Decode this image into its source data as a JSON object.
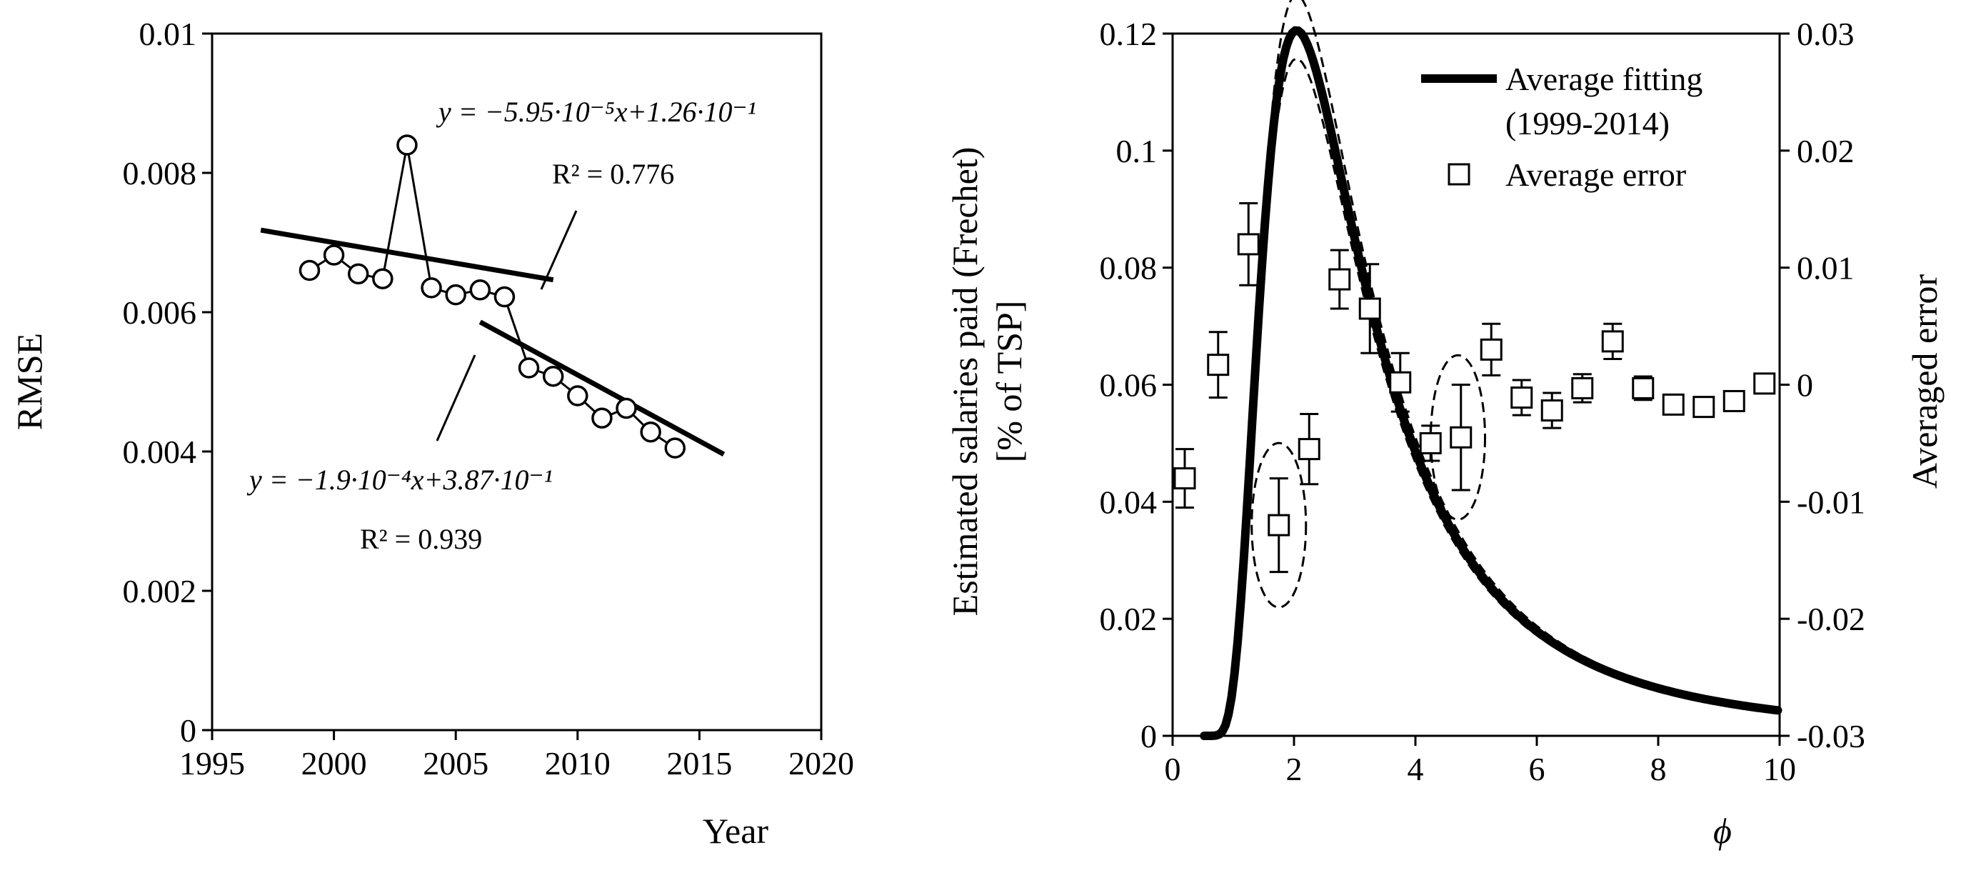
{
  "chart_data": [
    {
      "id": "left",
      "type": "scatter",
      "xlabel": "Year",
      "ylabel": "RMSE",
      "xlim": [
        1995,
        2020
      ],
      "ylim": [
        0,
        0.01
      ],
      "xticks": [
        1995,
        2000,
        2005,
        2010,
        2015,
        2020
      ],
      "yticks": [
        0,
        0.002,
        0.004,
        0.006,
        0.008,
        0.01
      ],
      "ytick_labels": [
        "0",
        "0.002",
        "0.004",
        "0.006",
        "0.008",
        "0.01"
      ],
      "series": [
        {
          "name": "RMSE",
          "x": [
            1999,
            2000,
            2001,
            2002,
            2003,
            2004,
            2005,
            2006,
            2007,
            2008,
            2009,
            2010,
            2011,
            2012,
            2013,
            2014
          ],
          "y": [
            0.0066,
            0.00682,
            0.00655,
            0.00648,
            0.0084,
            0.00635,
            0.00625,
            0.00632,
            0.00622,
            0.0052,
            0.00508,
            0.0048,
            0.00448,
            0.00462,
            0.00428,
            0.00405
          ]
        }
      ],
      "fits": [
        {
          "name": "fit-1999-2007",
          "x": [
            1997,
            2009
          ],
          "slope": -5.95e-05,
          "intercept": 0.126
        },
        {
          "name": "fit-2008-2014",
          "x": [
            2006,
            2016
          ],
          "slope": -0.00019,
          "intercept": 0.387
        }
      ],
      "annotations": [
        {
          "equation": "y = −5.95·10⁻⁵x+1.26·10⁻¹",
          "r2_label": "R² = 0.776"
        },
        {
          "equation": "y = −1.9·10⁻⁴x+3.87·10⁻¹",
          "r2_label": "R² = 0.939"
        }
      ]
    },
    {
      "id": "right",
      "type": "line",
      "xlabel": "ϕ",
      "ylabel_lines": [
        "Estimated salaries paid (Frechet)",
        "[% of TSP]"
      ],
      "y2label": "Averaged error",
      "xlim": [
        0,
        10
      ],
      "ylim": [
        0,
        0.12
      ],
      "y2lim": [
        -0.03,
        0.03
      ],
      "xticks": [
        0,
        2,
        4,
        6,
        8,
        10
      ],
      "yticks": [
        0,
        0.02,
        0.04,
        0.06,
        0.08,
        0.1,
        0.12
      ],
      "ytick_labels": [
        "0",
        "0.02",
        "0.04",
        "0.06",
        "0.08",
        "0.1",
        "0.12"
      ],
      "y2ticks": [
        -0.03,
        -0.02,
        -0.01,
        0,
        0.01,
        0.02,
        0.03
      ],
      "y2tick_labels": [
        "-0.03",
        "-0.02",
        "-0.01",
        "0",
        "0.01",
        "0.02",
        "0.03"
      ],
      "legend": {
        "placement": "top-right",
        "fit_label_lines": [
          "Average fitting",
          "(1999-2014)"
        ],
        "error_label": "Average error"
      },
      "fit_model": {
        "type": "frechet",
        "alpha": 2.0,
        "scale": 2.5,
        "amplitude": 0.3676,
        "upper_band_factor": 1.05,
        "lower_band_factor": 0.96,
        "x_start": 0.5
      },
      "error_series": {
        "name": "Average error",
        "x": [
          0.2,
          0.75,
          1.25,
          1.75,
          2.25,
          2.75,
          3.25,
          3.75,
          4.25,
          4.75,
          5.25,
          5.75,
          6.25,
          6.75,
          7.25,
          7.75,
          8.25,
          8.75,
          9.25,
          9.75
        ],
        "y": [
          -0.008,
          0.0017,
          0.012,
          -0.012,
          -0.0055,
          0.009,
          0.0065,
          0.0002,
          -0.005,
          -0.0045,
          0.003,
          -0.0011,
          -0.0022,
          -0.0003,
          0.0037,
          -0.0003,
          -0.0017,
          -0.0019,
          -0.0014,
          0.0001
        ],
        "err": [
          0.0025,
          0.0028,
          0.0035,
          0.004,
          0.003,
          0.0025,
          0.0038,
          0.0025,
          0.0015,
          0.0045,
          0.0022,
          0.0015,
          0.0015,
          0.0012,
          0.0015,
          0.001,
          0.0008,
          0.0008,
          0.0008,
          0.0006
        ]
      },
      "highlight_ellipses": [
        {
          "x": 1.75,
          "y": -0.012
        },
        {
          "x": 4.7,
          "y": -0.0045
        }
      ]
    }
  ]
}
